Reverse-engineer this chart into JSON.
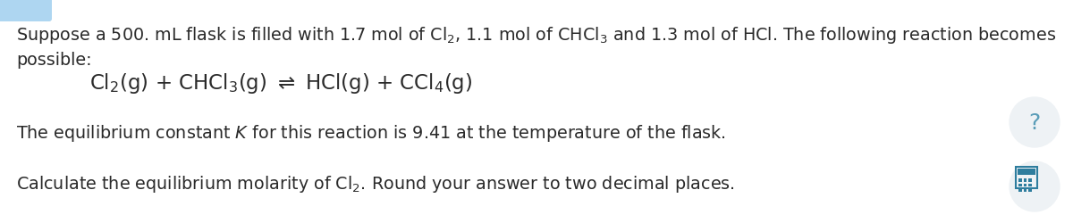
{
  "background_color": "#ffffff",
  "text_color": "#2a2a2a",
  "figsize": [
    12.0,
    2.51
  ],
  "dpi": 100,
  "font_size_main": 13.8,
  "font_size_reaction": 16.5,
  "icon_bg_color": "#eef2f5",
  "top_left_color": "#aed6f1",
  "question_color": "#5a9db8",
  "calc_color": "#2e7d9e",
  "line1": "Suppose a 500. mL flask is filled with 1.7 mol of Cl$_2$, 1.1 mol of CHCl$_3$ and 1.3 mol of HCl. The following reaction becomes",
  "line2": "possible:",
  "reaction": "Cl$_2$(g) + CHCl$_3$(g) $\\rightleftharpoons$ HCl(g) + CCl$_4$(g)",
  "line4": "The equilibrium constant $\\mathit{K}$ for this reaction is 9.41 at the temperature of the flask.",
  "line5": "Calculate the equilibrium molarity of Cl$_2$. Round your answer to two decimal places."
}
